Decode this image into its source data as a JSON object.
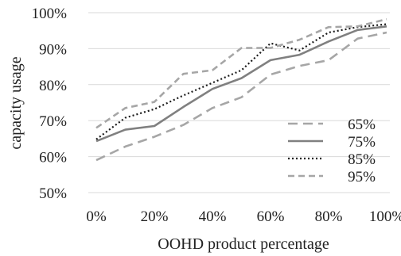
{
  "chart_data": {
    "type": "line",
    "title": "",
    "xlabel": "OOHD product percentage",
    "ylabel": "capacity usage",
    "x": [
      0,
      10,
      20,
      30,
      40,
      50,
      60,
      70,
      80,
      90,
      100
    ],
    "xticks": [
      0,
      20,
      40,
      60,
      80,
      100
    ],
    "xtick_labels": [
      "0%",
      "20%",
      "40%",
      "60%",
      "80%",
      "100%"
    ],
    "xlim": [
      0,
      100
    ],
    "ylim": [
      50,
      100
    ],
    "yticks": [
      50,
      60,
      70,
      80,
      90,
      100
    ],
    "ytick_labels": [
      "50%",
      "60%",
      "70%",
      "80%",
      "90%",
      "100%"
    ],
    "grid": "horizontal",
    "legend": "bottom-right",
    "series": [
      {
        "name": "65%",
        "style": "long-dash",
        "color": "#a6a6a6",
        "values": [
          59.0,
          62.8,
          65.5,
          68.8,
          73.5,
          76.5,
          82.8,
          85.2,
          86.8,
          92.8,
          94.5
        ]
      },
      {
        "name": "75%",
        "style": "solid",
        "color": "#808080",
        "values": [
          64.3,
          67.5,
          68.5,
          73.8,
          78.8,
          81.8,
          86.8,
          88.3,
          92.0,
          95.2,
          96.2
        ]
      },
      {
        "name": "85%",
        "style": "dotted",
        "color": "#1a1a1a",
        "values": [
          64.8,
          70.8,
          73.2,
          77.0,
          80.5,
          84.0,
          91.5,
          89.5,
          94.5,
          96.0,
          96.8
        ]
      },
      {
        "name": "95%",
        "style": "dash",
        "color": "#a6a6a6",
        "values": [
          68.0,
          73.5,
          75.2,
          83.0,
          84.0,
          90.2,
          90.2,
          92.5,
          96.0,
          96.2,
          98.2
        ]
      }
    ]
  }
}
